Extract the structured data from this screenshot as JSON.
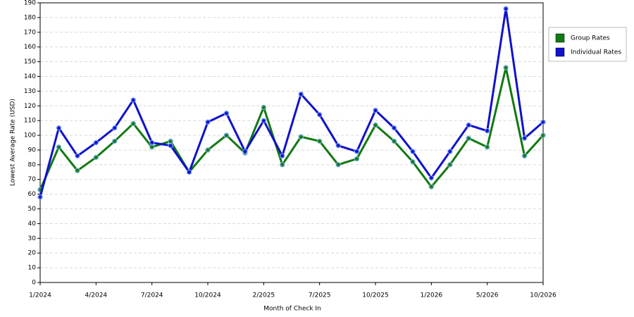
{
  "chart_data": {
    "type": "line",
    "x_label": "Month of Check In",
    "y_label": "Lowest Average Rate (USD)",
    "categories": [
      "1/2024",
      null,
      null,
      "4/2024",
      null,
      null,
      "7/2024",
      null,
      null,
      "10/2024",
      null,
      null,
      "2/2025",
      null,
      null,
      "7/2025",
      null,
      null,
      "10/2025",
      null,
      null,
      "1/2026",
      null,
      null,
      "5/2026",
      null,
      null,
      "10/2026"
    ],
    "series": [
      {
        "name": "Group Rates",
        "color": "#117a11",
        "values": [
          63,
          92,
          76,
          85,
          96,
          108,
          92,
          96,
          75,
          90,
          100,
          88,
          119,
          80,
          99,
          96,
          80,
          84,
          107,
          96,
          82,
          65,
          80,
          98,
          92,
          146,
          86,
          100
        ]
      },
      {
        "name": "Individual Rates",
        "color": "#1111cc",
        "values": [
          58,
          105,
          86,
          95,
          105,
          124,
          95,
          93,
          75,
          109,
          115,
          89,
          110,
          86,
          128,
          114,
          93,
          89,
          117,
          105,
          89,
          71,
          89,
          107,
          103,
          186,
          98,
          109
        ]
      }
    ],
    "ylim": [
      0,
      190
    ],
    "yticks": [
      0,
      10,
      20,
      30,
      40,
      50,
      60,
      70,
      80,
      90,
      100,
      110,
      120,
      130,
      140,
      150,
      160,
      170,
      180,
      190
    ],
    "grid": true,
    "legend": "right"
  }
}
